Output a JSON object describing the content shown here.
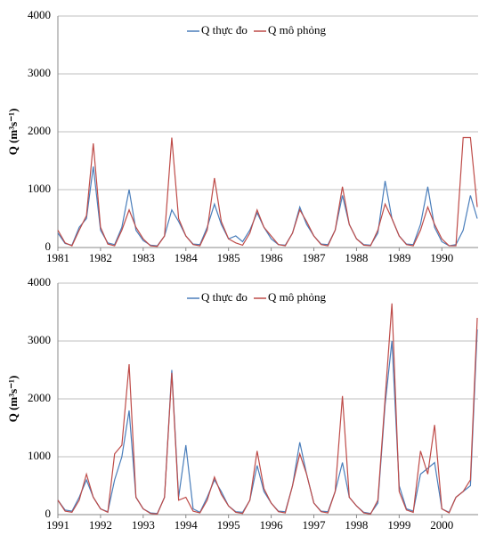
{
  "chart_data": [
    {
      "type": "line",
      "y_label": "Q (m³s⁻¹)",
      "xlim": [
        1981,
        1990.85
      ],
      "xticks": [
        1981,
        1982,
        1983,
        1984,
        1985,
        1986,
        1987,
        1988,
        1989,
        1990
      ],
      "ylim": [
        0,
        4000
      ],
      "yticks": [
        0,
        1000,
        2000,
        3000,
        4000
      ],
      "grid": true,
      "x": [
        1981,
        1981.17,
        1981.33,
        1981.5,
        1981.67,
        1981.83,
        1982,
        1982.17,
        1982.33,
        1982.5,
        1982.67,
        1982.83,
        1983,
        1983.17,
        1983.33,
        1983.5,
        1983.67,
        1983.83,
        1984,
        1984.17,
        1984.33,
        1984.5,
        1984.67,
        1984.83,
        1985,
        1985.17,
        1985.33,
        1985.5,
        1985.67,
        1985.83,
        1986,
        1986.17,
        1986.33,
        1986.5,
        1986.67,
        1986.83,
        1987,
        1987.17,
        1987.33,
        1987.5,
        1987.67,
        1987.83,
        1988,
        1988.17,
        1988.33,
        1988.5,
        1988.67,
        1988.83,
        1989,
        1989.17,
        1989.33,
        1989.5,
        1989.67,
        1989.83,
        1990,
        1990.17,
        1990.33,
        1990.5,
        1990.67,
        1990.83
      ],
      "series": [
        {
          "name": "Q thực đo",
          "color": "#4a7ebb",
          "values": [
            250,
            70,
            40,
            350,
            500,
            1400,
            300,
            80,
            50,
            350,
            1000,
            300,
            120,
            40,
            30,
            200,
            650,
            450,
            200,
            60,
            50,
            350,
            750,
            400,
            150,
            200,
            100,
            300,
            600,
            350,
            150,
            50,
            40,
            250,
            700,
            400,
            200,
            60,
            50,
            300,
            900,
            400,
            150,
            50,
            40,
            250,
            1150,
            500,
            200,
            60,
            50,
            400,
            1050,
            350,
            100,
            30,
            50,
            300,
            900,
            500
          ]
        },
        {
          "name": "Q mô phỏng",
          "color": "#be4b48",
          "values": [
            300,
            80,
            30,
            300,
            550,
            1800,
            350,
            60,
            30,
            300,
            650,
            350,
            150,
            30,
            20,
            200,
            1900,
            500,
            200,
            50,
            30,
            300,
            1200,
            450,
            150,
            80,
            40,
            250,
            650,
            350,
            200,
            50,
            30,
            250,
            650,
            450,
            200,
            50,
            30,
            300,
            1050,
            400,
            150,
            40,
            30,
            300,
            750,
            500,
            200,
            50,
            30,
            300,
            700,
            400,
            150,
            30,
            30,
            1900,
            1900,
            700
          ]
        }
      ]
    },
    {
      "type": "line",
      "y_label": "Q (m³s⁻¹)",
      "xlim": [
        1991,
        2000.85
      ],
      "xticks": [
        1991,
        1992,
        1993,
        1994,
        1995,
        1996,
        1997,
        1998,
        1999,
        2000
      ],
      "ylim": [
        0,
        4000
      ],
      "yticks": [
        0,
        1000,
        2000,
        3000,
        4000
      ],
      "grid": true,
      "x": [
        1991,
        1991.17,
        1991.33,
        1991.5,
        1991.67,
        1991.83,
        1992,
        1992.17,
        1992.33,
        1992.5,
        1992.67,
        1992.83,
        1993,
        1993.17,
        1993.33,
        1993.5,
        1993.67,
        1993.83,
        1994,
        1994.17,
        1994.33,
        1994.5,
        1994.67,
        1994.83,
        1995,
        1995.17,
        1995.33,
        1995.5,
        1995.67,
        1995.83,
        1996,
        1996.17,
        1996.33,
        1996.5,
        1996.67,
        1996.83,
        1997,
        1997.17,
        1997.33,
        1997.5,
        1997.67,
        1997.83,
        1998,
        1998.17,
        1998.33,
        1998.5,
        1998.67,
        1998.83,
        1999,
        1999.17,
        1999.33,
        1999.5,
        1999.67,
        1999.83,
        2000,
        2000.17,
        2000.33,
        2000.5,
        2000.67,
        2000.83
      ],
      "series": [
        {
          "name": "Q thực đo",
          "color": "#4a7ebb",
          "values": [
            250,
            80,
            60,
            300,
            600,
            300,
            100,
            50,
            600,
            1000,
            1800,
            300,
            100,
            30,
            20,
            300,
            2500,
            300,
            1200,
            100,
            40,
            300,
            600,
            400,
            150,
            50,
            40,
            250,
            850,
            400,
            200,
            60,
            50,
            500,
            1250,
            700,
            200,
            60,
            50,
            400,
            900,
            300,
            150,
            40,
            20,
            200,
            1900,
            3000,
            500,
            100,
            60,
            700,
            800,
            900,
            100,
            40,
            300,
            400,
            500,
            3200
          ]
        },
        {
          "name": "Q mô phỏng",
          "color": "#be4b48",
          "values": [
            250,
            60,
            40,
            250,
            700,
            300,
            100,
            40,
            1050,
            1200,
            2600,
            300,
            100,
            20,
            10,
            300,
            2450,
            250,
            300,
            60,
            30,
            250,
            650,
            350,
            150,
            40,
            20,
            250,
            1100,
            450,
            200,
            50,
            30,
            500,
            1050,
            700,
            200,
            50,
            30,
            400,
            2050,
            300,
            150,
            30,
            10,
            250,
            2000,
            3650,
            400,
            80,
            40,
            1100,
            700,
            1550,
            100,
            30,
            300,
            400,
            600,
            3400
          ]
        }
      ]
    }
  ]
}
